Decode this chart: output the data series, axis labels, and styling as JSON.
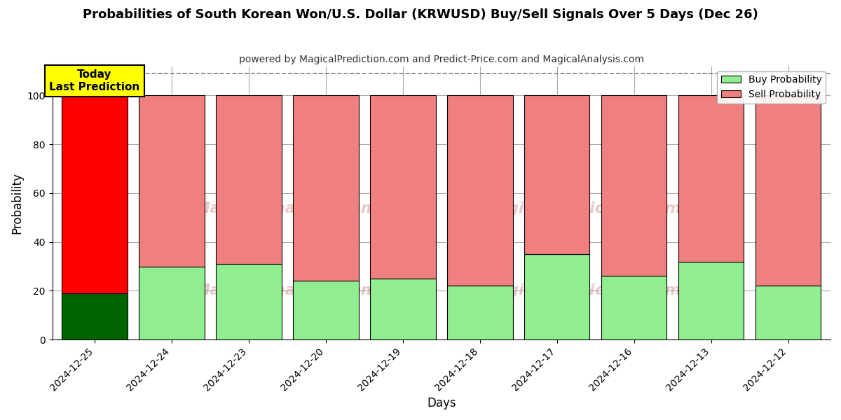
{
  "title": "Probabilities of South Korean Won/U.S. Dollar (KRWUSD) Buy/Sell Signals Over 5 Days (Dec 26)",
  "subtitle": "powered by MagicalPrediction.com and Predict-Price.com and MagicalAnalysis.com",
  "xlabel": "Days",
  "ylabel": "Probability",
  "dates": [
    "2024-12-25",
    "2024-12-24",
    "2024-12-23",
    "2024-12-20",
    "2024-12-19",
    "2024-12-18",
    "2024-12-17",
    "2024-12-16",
    "2024-12-13",
    "2024-12-12"
  ],
  "buy_probs": [
    19,
    30,
    31,
    24,
    25,
    22,
    35,
    26,
    32,
    22
  ],
  "sell_probs": [
    81,
    70,
    69,
    76,
    75,
    78,
    65,
    74,
    68,
    78
  ],
  "today_buy_color": "#006400",
  "today_sell_color": "#FF0000",
  "other_buy_color": "#90EE90",
  "other_sell_color": "#F08080",
  "today_label_bg": "#FFFF00",
  "today_label_text": "Today\nLast Prediction",
  "legend_buy_label": "Buy Probability",
  "legend_sell_label": "Sell Probability",
  "ylim": [
    0,
    112
  ],
  "dashed_line_y": 109,
  "background_color": "#ffffff",
  "grid_color": "#aaaaaa",
  "bar_edge_color": "#000000",
  "bar_width": 0.85
}
